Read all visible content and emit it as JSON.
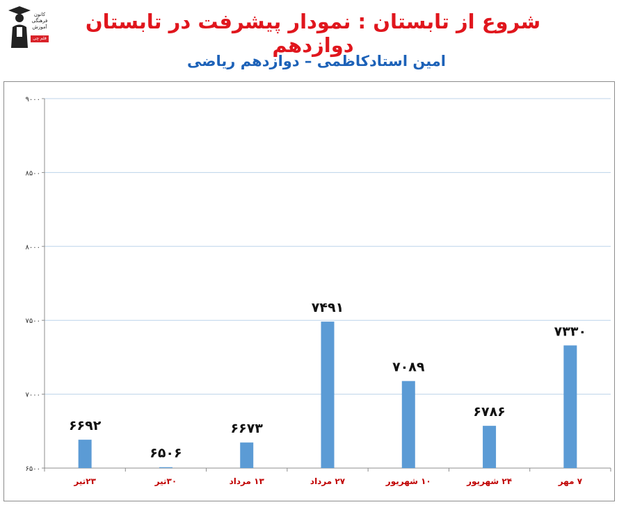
{
  "header": {
    "title": "شروع از تابستان : نمودار پیشرفت در تابستان دوازدهم",
    "subtitle": "امین استادکاظمی – دوازدهم ریاضی"
  },
  "logo": {
    "text": "کانون فرهنگی آموزش",
    "badge": "قلم چی"
  },
  "colors": {
    "title": "#e0161d",
    "subtitle": "#1d62b8",
    "bar": "#5b9bd5",
    "category_label": "#c00000",
    "grid": "#bcd3ea"
  },
  "chart_data": {
    "type": "bar",
    "categories": [
      "۲۳تیر",
      "۳۰تیر",
      "۱۳ مرداد",
      "۲۷ مرداد",
      "۱۰ شهریور",
      "۲۴ شهریور",
      "۷ مهر"
    ],
    "values": [
      6692,
      6506,
      6673,
      7491,
      7089,
      6786,
      7330
    ],
    "data_labels": [
      "۶۶۹۲",
      "۶۵۰۶",
      "۶۶۷۳",
      "۷۴۹۱",
      "۷۰۸۹",
      "۶۷۸۶",
      "۷۳۳۰"
    ],
    "y_ticks": [
      6500,
      7000,
      7500,
      8000,
      8500,
      9000
    ],
    "y_tick_labels": [
      "۶۵۰۰",
      "۷۰۰۰",
      "۷۵۰۰",
      "۸۰۰۰",
      "۸۵۰۰",
      "۹۰۰۰"
    ],
    "ylim": [
      6500,
      9000
    ],
    "grid": true,
    "legend": "none"
  }
}
